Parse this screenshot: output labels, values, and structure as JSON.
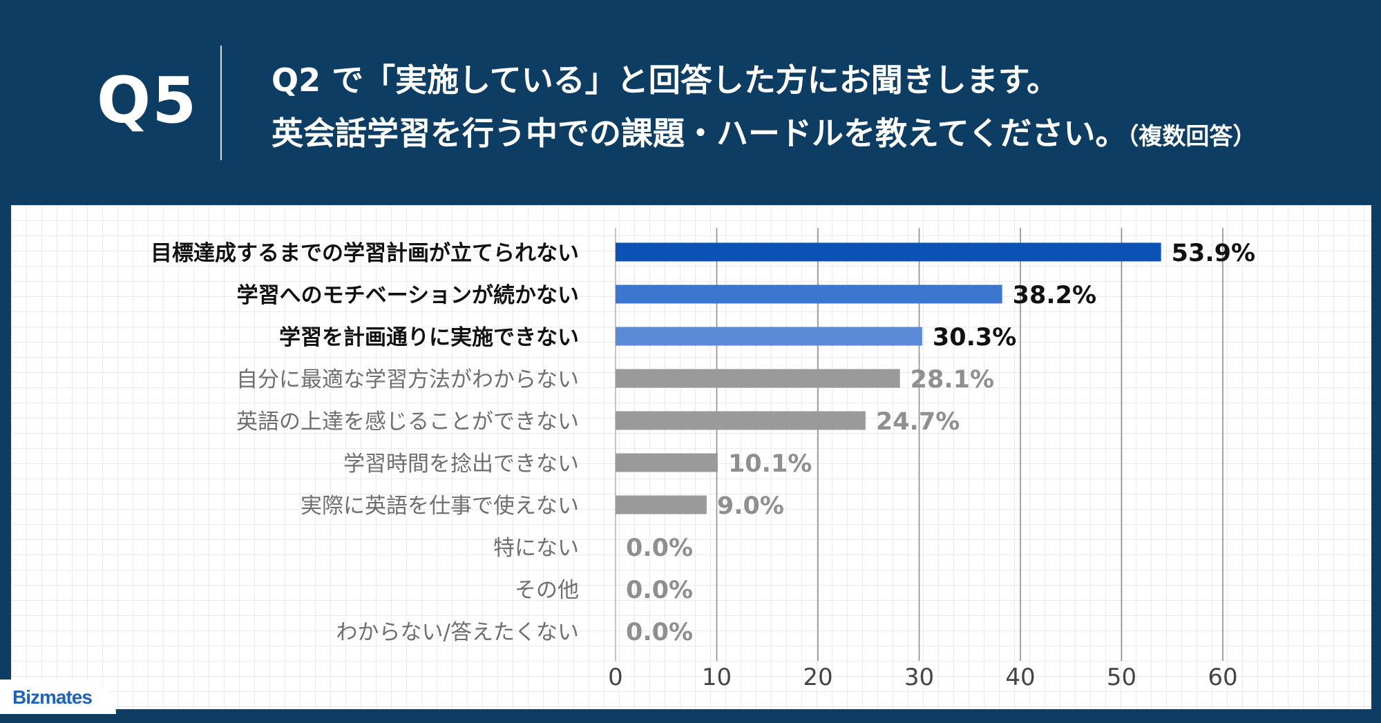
{
  "header": {
    "question_number": "Q5",
    "title_line1": "Q2 で「実施している」と回答した方にお聞きします。",
    "title_line2": "英会話学習を行う中での課題・ハードルを教えてください。",
    "title_note": "（複数回答）"
  },
  "brand": {
    "logo_text": "Bizmates"
  },
  "colors": {
    "background": "#0e3d63",
    "top1": "#0b52b4",
    "top2": "#3d76cf",
    "top3": "#5b8bd6",
    "other": "#9a9a9a",
    "label_strong": "#111111",
    "label_muted": "#6f6f6f",
    "value_muted": "#8f8f8f"
  },
  "chart_data": {
    "type": "bar",
    "orientation": "horizontal",
    "categories": [
      "目標達成するまでの学習計画が立てられない",
      "学習へのモチベーションが続かない",
      "学習を計画通りに実施できない",
      "自分に最適な学習方法がわからない",
      "英語の上達を感じることができない",
      "学習時間を捻出できない",
      "実際に英語を仕事で使えない",
      "特にない",
      "その他",
      "わからない/答えたくない"
    ],
    "values": [
      53.9,
      38.2,
      30.3,
      28.1,
      24.7,
      10.1,
      9.0,
      0.0,
      0.0,
      0.0
    ],
    "value_labels": [
      "53.9%",
      "38.2%",
      "30.3%",
      "28.1%",
      "24.7%",
      "10.1%",
      "9.0%",
      "0.0%",
      "0.0%",
      "0.0%"
    ],
    "highlighted_top": 3,
    "xlim": [
      0,
      60
    ],
    "xticks": [
      0,
      10,
      20,
      30,
      40,
      50,
      60
    ],
    "grid": true,
    "legend": "none"
  }
}
